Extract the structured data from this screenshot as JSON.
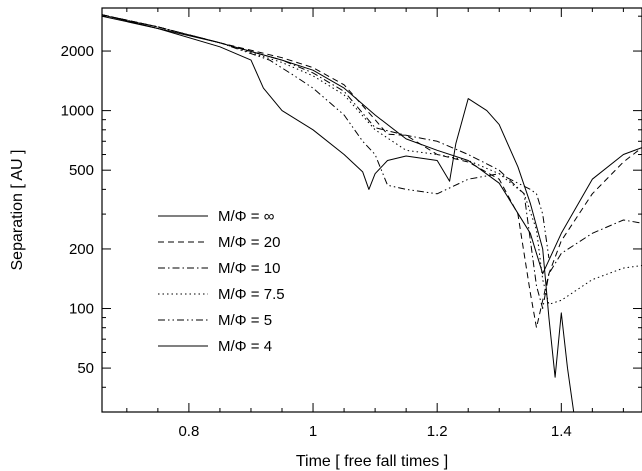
{
  "chart_data": {
    "type": "line",
    "title": "",
    "xlabel": "Time [ free fall times ]",
    "ylabel": "Separation [ AU ]",
    "xlim": [
      0.66,
      1.53
    ],
    "ylim": [
      30,
      3300
    ],
    "yscale": "log",
    "grid": false,
    "legend_position": "left-middle",
    "xticks": [
      0.8,
      1.0,
      1.2,
      1.4
    ],
    "xtick_labels": [
      "0.8",
      "1",
      "1.2",
      "1.4"
    ],
    "yticks": [
      50,
      100,
      200,
      500,
      1000,
      2000
    ],
    "ytick_labels": [
      "50",
      "100",
      "200",
      "500",
      "1000",
      "2000"
    ],
    "series": [
      {
        "name": "M/Φ = ∞",
        "dash": "solid",
        "x": [
          0.66,
          0.75,
          0.85,
          0.95,
          1.0,
          1.05,
          1.1,
          1.15,
          1.2,
          1.25,
          1.3,
          1.35,
          1.37,
          1.4,
          1.45,
          1.5,
          1.53
        ],
        "y": [
          3000,
          2600,
          2200,
          1800,
          1600,
          1300,
          950,
          720,
          630,
          560,
          430,
          240,
          150,
          240,
          450,
          600,
          650
        ]
      },
      {
        "name": "M/Φ = 20",
        "dash": "6,4",
        "x": [
          0.66,
          0.75,
          0.85,
          0.95,
          1.0,
          1.05,
          1.1,
          1.12,
          1.15,
          1.2,
          1.25,
          1.3,
          1.33,
          1.35,
          1.36,
          1.37,
          1.38,
          1.4,
          1.45,
          1.5,
          1.53
        ],
        "y": [
          3050,
          2650,
          2200,
          1850,
          1650,
          1350,
          900,
          760,
          750,
          600,
          550,
          450,
          300,
          120,
          80,
          110,
          150,
          220,
          380,
          550,
          650
        ]
      },
      {
        "name": "M/Φ = 10",
        "dash": "7,3,1.5,3",
        "x": [
          0.66,
          0.75,
          0.85,
          0.95,
          1.0,
          1.05,
          1.1,
          1.15,
          1.2,
          1.25,
          1.3,
          1.34,
          1.36,
          1.37,
          1.38,
          1.4,
          1.45,
          1.5,
          1.53
        ],
        "y": [
          3050,
          2650,
          2200,
          1800,
          1550,
          1250,
          820,
          750,
          700,
          600,
          500,
          380,
          130,
          100,
          150,
          190,
          240,
          280,
          270
        ]
      },
      {
        "name": "M/Φ = 7.5",
        "dash": "1.5,3",
        "x": [
          0.66,
          0.75,
          0.85,
          0.95,
          1.0,
          1.05,
          1.1,
          1.15,
          1.2,
          1.25,
          1.3,
          1.34,
          1.36,
          1.37,
          1.38,
          1.4,
          1.45,
          1.5,
          1.53
        ],
        "y": [
          3050,
          2650,
          2200,
          1750,
          1500,
          1200,
          800,
          630,
          600,
          560,
          480,
          380,
          250,
          140,
          105,
          110,
          140,
          160,
          165
        ]
      },
      {
        "name": "M/Φ = 5",
        "dash": "7,3,1.5,3,1.5,3",
        "x": [
          0.66,
          0.75,
          0.85,
          0.93,
          0.97,
          1.0,
          1.05,
          1.08,
          1.1,
          1.12,
          1.15,
          1.2,
          1.25,
          1.3,
          1.35,
          1.36,
          1.37,
          1.38
        ],
        "y": [
          3050,
          2650,
          2200,
          1800,
          1500,
          1300,
          950,
          700,
          600,
          420,
          400,
          380,
          450,
          480,
          400,
          380,
          300,
          180
        ]
      },
      {
        "name": "M/Φ = 4",
        "dash": "solid",
        "x": [
          0.66,
          0.75,
          0.85,
          0.9,
          0.92,
          0.95,
          1.0,
          1.05,
          1.08,
          1.09,
          1.1,
          1.12,
          1.15,
          1.2,
          1.22,
          1.23,
          1.25,
          1.28,
          1.3,
          1.33,
          1.35,
          1.37,
          1.38,
          1.39,
          1.4,
          1.41,
          1.42
        ],
        "y": [
          3050,
          2600,
          2100,
          1800,
          1300,
          1000,
          800,
          600,
          490,
          400,
          480,
          560,
          590,
          560,
          440,
          680,
          1150,
          1000,
          850,
          520,
          340,
          200,
          90,
          45,
          95,
          50,
          30
        ]
      }
    ]
  }
}
